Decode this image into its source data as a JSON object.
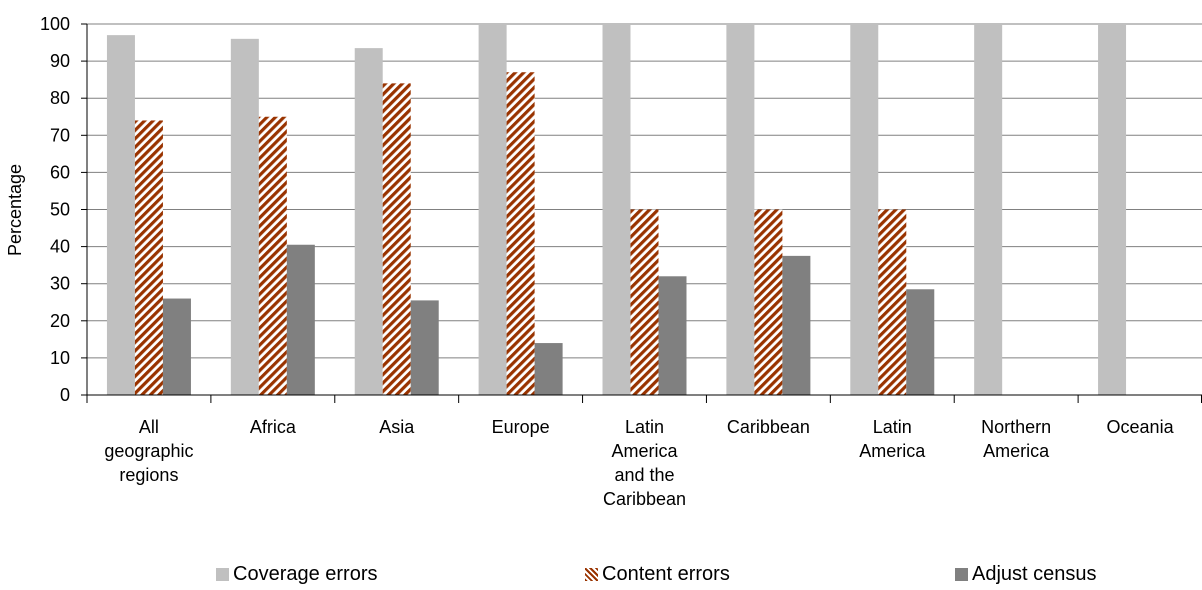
{
  "chart_data": {
    "type": "bar",
    "ylabel": "Percentage",
    "ylim": [
      0,
      100
    ],
    "yticks": [
      "0",
      "10",
      "20",
      "30",
      "40",
      "50",
      "60",
      "70",
      "80",
      "90",
      "100"
    ],
    "grid": true,
    "legend_position": "bottom",
    "categories": [
      [
        "All",
        "geographic",
        "regions"
      ],
      [
        "Africa"
      ],
      [
        "Asia"
      ],
      [
        "Europe"
      ],
      [
        "Latin",
        "America",
        "and the",
        "Caribbean"
      ],
      [
        "Caribbean"
      ],
      [
        "Latin",
        "America"
      ],
      [
        "Northern",
        "America"
      ],
      [
        "Oceania"
      ]
    ],
    "series": [
      {
        "name": "Coverage errors",
        "color": "#c0c0c0",
        "pattern": "solid",
        "values": [
          97,
          96,
          93.5,
          100,
          100,
          100,
          100,
          100,
          100
        ]
      },
      {
        "name": "Content errors",
        "color": "#993300",
        "pattern": "diagonal-stripes",
        "values": [
          74,
          75,
          84,
          87,
          50,
          50,
          50,
          0,
          0
        ]
      },
      {
        "name": "Adjust census",
        "color": "#808080",
        "pattern": "solid",
        "values": [
          26,
          40.5,
          25.5,
          14,
          32,
          37.5,
          28.5,
          0,
          0
        ]
      }
    ]
  }
}
